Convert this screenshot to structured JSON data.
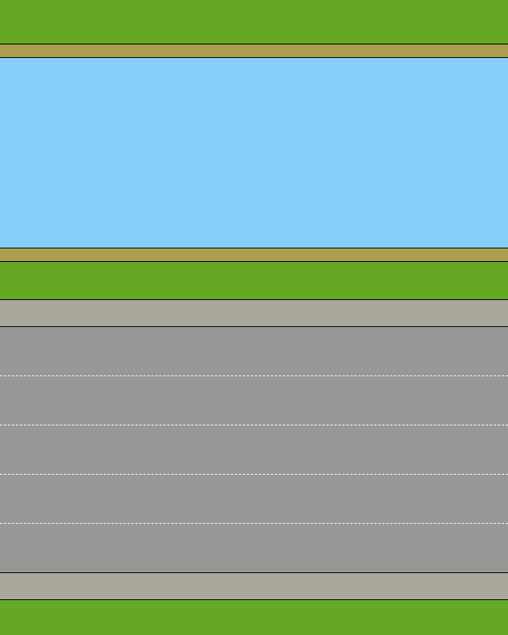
{
  "colors": {
    "grass": "#66a823",
    "riverbank": "#ab9f4f",
    "water": "#87cffb",
    "sidewalk": "#aaa89d",
    "road": "#979796",
    "edge_line": "#000000",
    "lane_marking": "#ffffff"
  },
  "scene": {
    "rows_top_to_bottom": [
      "grass",
      "riverbank",
      "river",
      "riverbank",
      "grass",
      "sidewalk",
      "road-lane",
      "road-lane",
      "road-lane",
      "road-lane",
      "road-lane",
      "sidewalk",
      "grass"
    ],
    "road_lane_count": 5
  }
}
